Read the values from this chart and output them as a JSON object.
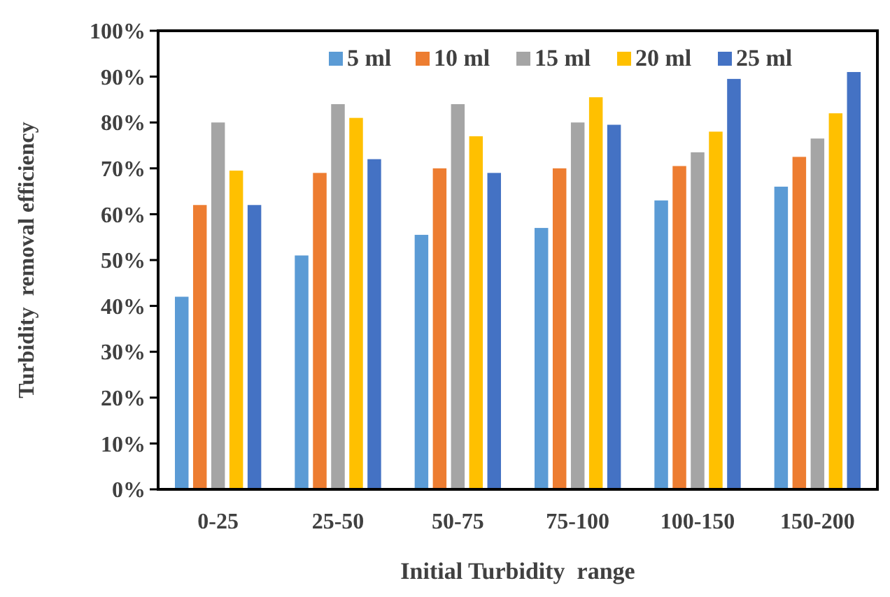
{
  "chart_data": {
    "type": "bar",
    "xlabel": "Initial Turbidity  range",
    "ylabel": "Turbidity  removal efficiency",
    "categories": [
      "0-25",
      "25-50",
      "50-75",
      "75-100",
      "100-150",
      "150-200"
    ],
    "series": [
      {
        "name": "5 ml",
        "color": "#5b9bd5",
        "values": [
          42,
          51,
          55.5,
          57,
          63,
          66
        ]
      },
      {
        "name": "10 ml",
        "color": "#ed7d31",
        "values": [
          62,
          69,
          70,
          70,
          70.5,
          72.5
        ]
      },
      {
        "name": "15 ml",
        "color": "#a5a5a5",
        "values": [
          80,
          84,
          84,
          80,
          73.5,
          76.5
        ]
      },
      {
        "name": "20 ml",
        "color": "#ffc000",
        "values": [
          69.5,
          81,
          77,
          85.5,
          78,
          82
        ]
      },
      {
        "name": "25 ml",
        "color": "#4472c4",
        "values": [
          62,
          72,
          69,
          79.5,
          89.5,
          91
        ]
      }
    ],
    "ylim": [
      0,
      100
    ],
    "yticks": [
      {
        "value": 0,
        "label": "0%"
      },
      {
        "value": 10,
        "label": "10%"
      },
      {
        "value": 20,
        "label": "20%"
      },
      {
        "value": 30,
        "label": "30%"
      },
      {
        "value": 40,
        "label": "40%"
      },
      {
        "value": 50,
        "label": "50%"
      },
      {
        "value": 60,
        "label": "60%"
      },
      {
        "value": 70,
        "label": "70%"
      },
      {
        "value": 80,
        "label": "80%"
      },
      {
        "value": 90,
        "label": "90%"
      },
      {
        "value": 100,
        "label": "100%"
      }
    ],
    "grid": false,
    "legend": "top"
  }
}
